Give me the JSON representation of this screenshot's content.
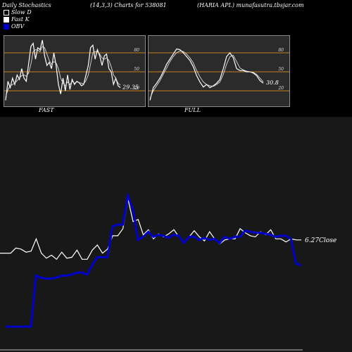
{
  "header": {
    "left": "Daily Stochastics",
    "center": "(14,3,3) Charts for 538081",
    "right": "(HARIA APL) munafasutra.tbsjar.com"
  },
  "legend": [
    {
      "label": "Slow  D",
      "icon": "slow-d-swatch"
    },
    {
      "label": "Fast K",
      "icon": "fast-k-swatch"
    },
    {
      "label": "OBV",
      "icon": "obv-swatch",
      "color": "#0000cc"
    }
  ],
  "chart_data": [
    {
      "type": "line",
      "name": "fast-stochastic",
      "panel_label": "FAST",
      "ylim": [
        0,
        100
      ],
      "yticks": [
        20,
        50,
        80
      ],
      "ref_lines": [
        20,
        50,
        80
      ],
      "ref_color": "#c8821e",
      "last_value_label": "29.35",
      "series": [
        {
          "role": "fast-k",
          "color": "#ffffff",
          "values": [
            5,
            35,
            25,
            40,
            30,
            45,
            38,
            55,
            40,
            35,
            62,
            90,
            95,
            70,
            88,
            85,
            100,
            75,
            60,
            65,
            55,
            80,
            60,
            30,
            15,
            40,
            20,
            45,
            22,
            38,
            30,
            35,
            33,
            28,
            30,
            45,
            60,
            88,
            92,
            70,
            85,
            75,
            60,
            75,
            78,
            55,
            50,
            30,
            40,
            28,
            25
          ]
        },
        {
          "role": "slow-d",
          "color": "#dddddd",
          "values": [
            10,
            22,
            28,
            30,
            32,
            36,
            40,
            44,
            45,
            43,
            48,
            62,
            82,
            85,
            84,
            82,
            90,
            88,
            78,
            68,
            62,
            66,
            64,
            55,
            40,
            32,
            28,
            34,
            30,
            35,
            32,
            34,
            33,
            32,
            31,
            36,
            45,
            62,
            80,
            82,
            82,
            78,
            72,
            70,
            72,
            68,
            58,
            45,
            40,
            32,
            29
          ]
        }
      ]
    },
    {
      "type": "line",
      "name": "full-stochastic",
      "panel_label": "FULL",
      "ylim": [
        0,
        100
      ],
      "yticks": [
        20,
        50,
        80
      ],
      "ref_lines": [
        20,
        50,
        80
      ],
      "ref_color": "#c8821e",
      "last_value_label": "30.8",
      "series": [
        {
          "role": "full-k",
          "color": "#ffffff",
          "values": [
            5,
            25,
            32,
            40,
            50,
            62,
            70,
            78,
            86,
            85,
            80,
            74,
            68,
            58,
            44,
            34,
            26,
            30,
            25,
            28,
            32,
            38,
            55,
            74,
            80,
            72,
            55,
            52,
            52,
            50,
            50,
            48,
            44,
            36,
            32
          ]
        },
        {
          "role": "full-d",
          "color": "#dddddd",
          "values": [
            8,
            20,
            28,
            36,
            46,
            56,
            66,
            74,
            80,
            83,
            82,
            78,
            72,
            64,
            52,
            42,
            34,
            30,
            28,
            27,
            30,
            34,
            46,
            62,
            74,
            76,
            66,
            56,
            53,
            51,
            50,
            49,
            46,
            40,
            34
          ]
        }
      ]
    },
    {
      "type": "line",
      "name": "price-obv",
      "price_label": "6.27",
      "close_label": "Close",
      "series": [
        {
          "role": "close",
          "color": "#ffffff",
          "values": [
            32,
            32,
            37,
            36,
            33,
            34,
            46,
            32,
            27,
            30,
            26,
            33,
            27,
            28,
            35,
            26,
            26,
            35,
            40,
            32,
            36,
            49,
            49,
            56,
            85,
            63,
            65,
            50,
            55,
            46,
            51,
            48,
            51,
            55,
            48,
            42,
            48,
            54,
            48,
            44,
            53,
            46,
            41,
            45,
            46,
            46,
            56,
            52,
            49,
            48,
            53,
            50,
            55,
            46,
            46,
            43,
            46,
            45,
            45
          ]
        },
        {
          "role": "obv",
          "color": "#0000cc",
          "values": [
            -40,
            -40,
            -40,
            -40,
            -40,
            -40,
            10,
            8,
            7,
            7,
            8,
            10,
            10,
            11,
            13,
            13,
            11,
            20,
            28,
            28,
            28,
            58,
            60,
            60,
            88,
            75,
            45,
            48,
            53,
            48,
            50,
            49,
            47,
            50,
            49,
            42,
            48,
            48,
            45,
            47,
            45,
            46,
            42,
            48,
            46,
            48,
            48,
            54,
            53,
            52,
            52,
            51,
            50,
            48,
            49,
            49,
            46,
            22,
            20
          ]
        }
      ]
    }
  ]
}
